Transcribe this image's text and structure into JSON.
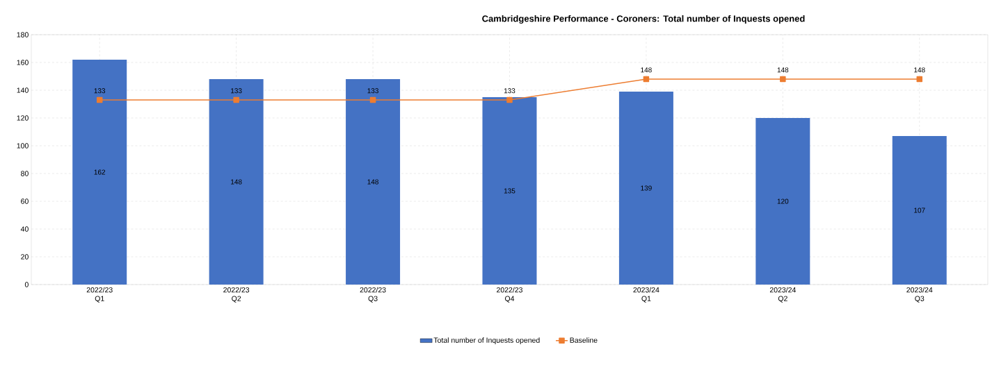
{
  "chart_data": {
    "type": "bar",
    "title": "Cambridgeshire Performance - Coroners: Total number of Inquests opened",
    "categories": [
      "2022/23 Q1",
      "2022/23 Q2",
      "2022/23 Q3",
      "2022/23 Q4",
      "2023/24 Q1",
      "2023/24 Q2",
      "2023/24 Q3"
    ],
    "series": [
      {
        "name": "Total number of Inquests opened",
        "color": "#4472c4",
        "values": [
          162,
          148,
          148,
          135,
          139,
          120,
          107
        ]
      },
      {
        "name": "Baseline",
        "type": "line",
        "color": "#ed7d31",
        "marker": "square",
        "values": [
          133,
          133,
          133,
          133,
          148,
          148,
          148
        ]
      }
    ],
    "ylim": [
      0,
      180
    ],
    "yticks": [
      0,
      20,
      40,
      60,
      80,
      100,
      120,
      140,
      160,
      180
    ],
    "grid": true,
    "legend": "bottom",
    "data_labels": true
  }
}
